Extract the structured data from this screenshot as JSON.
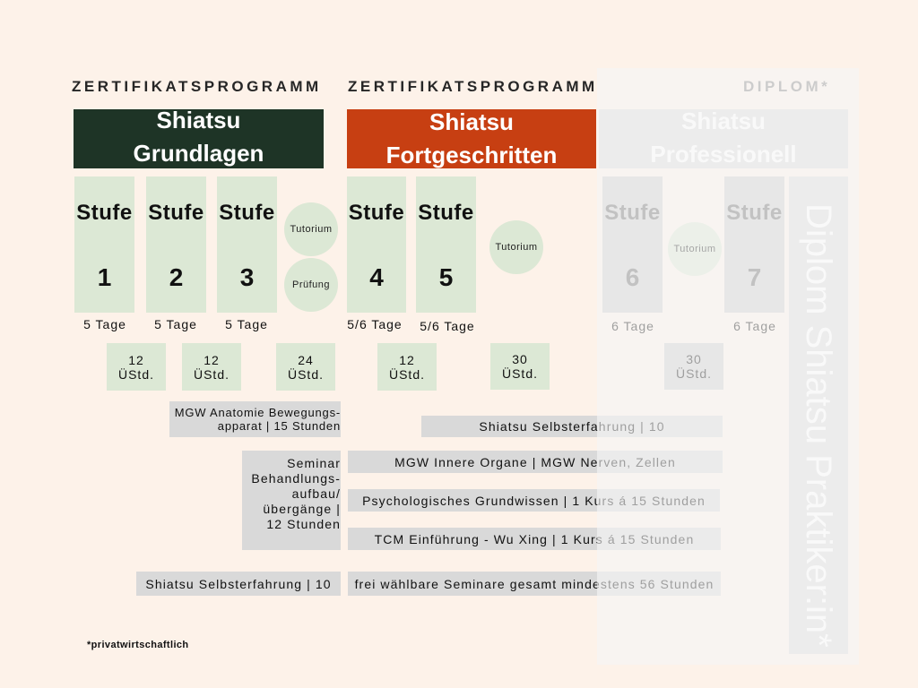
{
  "header_labels": [
    "ZERTIFIKATSPROGRAMM",
    "ZERTIFIKATSPROGRAMM",
    "DIPLOM*"
  ],
  "programs": [
    {
      "title_line1": "Shiatsu",
      "title_line2": "Grundlagen"
    },
    {
      "title_line1": "Shiatsu",
      "title_line2": "Fortgeschritten"
    },
    {
      "title_line1": "Shiatsu",
      "title_line2": "Professionell"
    }
  ],
  "levels": [
    {
      "label": "Stufe",
      "number": "1",
      "duration": "5 Tage"
    },
    {
      "label": "Stufe",
      "number": "2",
      "duration": "5 Tage"
    },
    {
      "label": "Stufe",
      "number": "3",
      "duration": "5 Tage"
    },
    {
      "label": "Stufe",
      "number": "4",
      "duration": "5/6 Tage"
    },
    {
      "label": "Stufe",
      "number": "5",
      "duration": "5/6 Tage"
    },
    {
      "label": "Stufe",
      "number": "6",
      "duration": "6 Tage"
    },
    {
      "label": "Stufe",
      "number": "7",
      "duration": "6 Tage"
    }
  ],
  "sessions": [
    "Tutorium",
    "Prüfung",
    "Tutorium",
    "Tutorium"
  ],
  "practice_hours": [
    {
      "value": "12",
      "unit": "ÜStd."
    },
    {
      "value": "12",
      "unit": "ÜStd."
    },
    {
      "value": "24",
      "unit": "ÜStd."
    },
    {
      "value": "12",
      "unit": "ÜStd."
    },
    {
      "value": "30",
      "unit": "ÜStd."
    },
    {
      "value": "30",
      "unit": "ÜStd."
    }
  ],
  "modules": {
    "anatomy": [
      "MGW Anatomie Bewegungs-",
      "apparat | 15 Stunden"
    ],
    "self_experience_advanced": "Shiatsu Selbsterfahrung | 10",
    "treatment_seminar": [
      "Seminar",
      "Behandlungs-",
      "aufbau/",
      "übergänge |",
      "12 Stunden"
    ],
    "inner_organs": "MGW Innere Organe | MGW Nerven, Zellen",
    "psychology": "Psychologisches Grundwissen | 1 Kurs á 15 Stunden",
    "tcm": "TCM Einführung - Wu Xing | 1 Kurs á 15 Stunden",
    "self_experience_basic": "Shiatsu Selbsterfahrung | 10",
    "electives": "frei wählbare Seminare gesamt mindestens 56 Stunden"
  },
  "diploma_title": "Diplom Shiatsu Praktiker:in*",
  "footnote": "*privatwirtschaftlich",
  "colors": {
    "background": "#fdf2e9",
    "text": "#111111",
    "level_fill": "#dce8d5",
    "module_fill": "#d9d9d9",
    "inactive_fill": "#cfcfcf",
    "basics_program": "#1e3426",
    "advanced_program": "#c73f12",
    "professional_program": "#dcdcdc"
  }
}
